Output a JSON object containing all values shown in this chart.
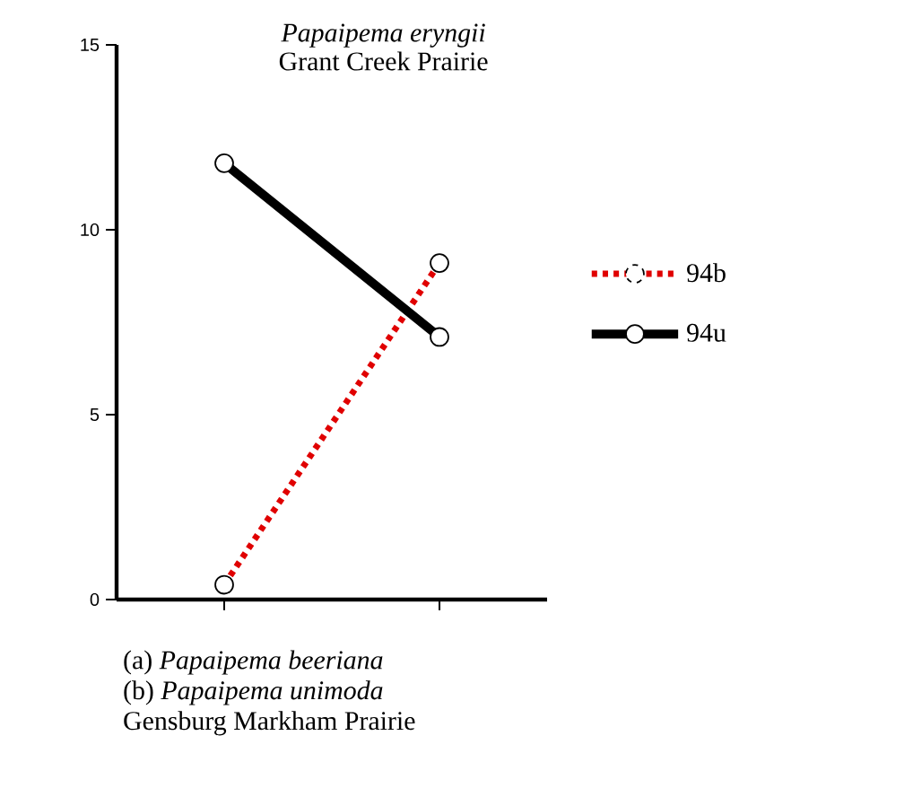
{
  "chart_data": {
    "type": "line",
    "title": "Papaipema eryngii",
    "subtitle": "Grant Creek Prairie",
    "categories": [
      null,
      null
    ],
    "series": [
      {
        "name": "94b",
        "color": "#e00000",
        "line_style": "dotted",
        "values": [
          0.4,
          9.1
        ]
      },
      {
        "name": "94u",
        "color": "#000000",
        "line_style": "solid",
        "values": [
          11.8,
          7.1
        ]
      }
    ],
    "ylim": [
      0,
      15
    ],
    "yticks": [
      0,
      5,
      10,
      15
    ],
    "marker": "circle",
    "legend": "right",
    "annotations": [
      "(a) *Papaipema beeriana*",
      "(b) *Papaipema unimoda*",
      "Gensburg Markham Prairie"
    ]
  }
}
